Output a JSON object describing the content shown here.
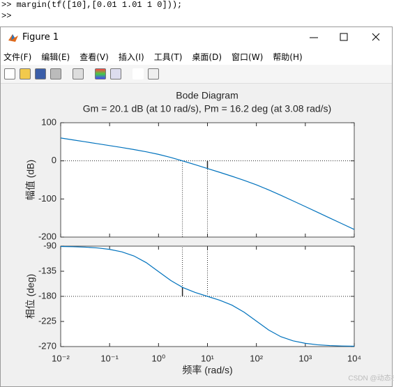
{
  "console": {
    "command": ">> margin(tf([10],[0.01 1.01 1 0]));",
    "prompt": ">>"
  },
  "window": {
    "title": "Figure 1",
    "menu": [
      "文件(F)",
      "编辑(E)",
      "查看(V)",
      "插入(I)",
      "工具(T)",
      "桌面(D)",
      "窗口(W)",
      "帮助(H)"
    ]
  },
  "watermark": "CSDN @动态枝杆",
  "chart_data": [
    {
      "type": "line",
      "title": "Bode Diagram",
      "subtitle": "Gm = 20.1 dB (at 10 rad/s),  Pm = 16.2 deg (at 3.08 rad/s)",
      "ylabel": "幅值 (dB)",
      "xscale": "log",
      "x": [
        0.01,
        0.0178,
        0.0316,
        0.0562,
        0.1,
        0.178,
        0.316,
        0.562,
        1,
        1.78,
        3.16,
        5.62,
        10,
        17.8,
        31.6,
        56.2,
        100,
        178,
        316,
        562,
        1000,
        1778,
        3162,
        5623,
        10000
      ],
      "series": [
        {
          "color": "#0072bd",
          "values": [
            60,
            55,
            50,
            45,
            40,
            34.9,
            29.6,
            23.8,
            17,
            8.8,
            -0.4,
            -10.1,
            -20.1,
            -30.1,
            -40.4,
            -51.2,
            -63,
            -76.2,
            -90.4,
            -105.1,
            -120,
            -135,
            -150,
            -165,
            -180
          ]
        }
      ],
      "xlim": [
        0.01,
        10000
      ],
      "xticks": [
        0.01,
        0.1,
        1,
        10,
        100,
        1000,
        10000
      ],
      "ylim": [
        -200,
        100
      ],
      "yticks": [
        -200,
        -100,
        0,
        100
      ],
      "reference_line": 0,
      "crossovers": [
        3.08,
        10
      ],
      "margin_bar": {
        "x": 10,
        "from": 0,
        "to": -20.1
      }
    },
    {
      "type": "line",
      "ylabel": "相位 (deg)",
      "xlabel": "频率  (rad/s)",
      "xscale": "log",
      "x": [
        0.01,
        0.0178,
        0.0316,
        0.0562,
        0.1,
        0.178,
        0.316,
        0.562,
        1,
        1.78,
        3.16,
        5.62,
        10,
        17.8,
        31.6,
        56.2,
        100,
        178,
        316,
        562,
        1000,
        1778,
        3162,
        5623,
        10000
      ],
      "series": [
        {
          "color": "#0072bd",
          "values": [
            -90.6,
            -91,
            -91.8,
            -93.2,
            -95.8,
            -100.2,
            -107.7,
            -119.6,
            -135.6,
            -151.6,
            -164.3,
            -173.1,
            -180,
            -186.9,
            -195.7,
            -208.4,
            -224.4,
            -240.3,
            -252.3,
            -259.8,
            -264.2,
            -266.8,
            -268.2,
            -269,
            -269.4
          ]
        }
      ],
      "xlim": [
        0.01,
        10000
      ],
      "xticks": [
        {
          "value": 0.01,
          "label": "10⁻²"
        },
        {
          "value": 0.1,
          "label": "10⁻¹"
        },
        {
          "value": 1,
          "label": "10⁰"
        },
        {
          "value": 10,
          "label": "10¹"
        },
        {
          "value": 100,
          "label": "10²"
        },
        {
          "value": 1000,
          "label": "10³"
        },
        {
          "value": 10000,
          "label": "10⁴"
        }
      ],
      "ylim": [
        -270,
        -90
      ],
      "yticks": [
        -270,
        -225,
        -180,
        -135,
        -90
      ],
      "reference_line": -180,
      "crossovers": [
        3.08,
        10
      ],
      "margin_bar": {
        "x": 3.08,
        "from": -180,
        "to": -163.8
      }
    }
  ]
}
